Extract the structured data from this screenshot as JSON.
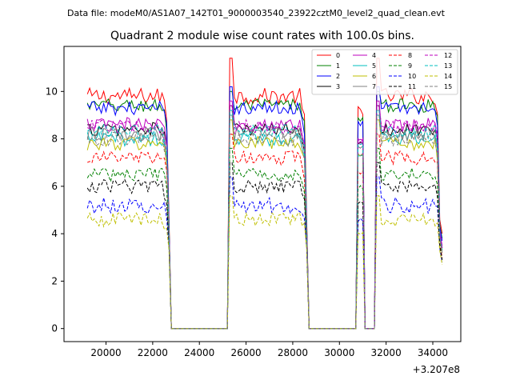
{
  "chart_data": {
    "type": "line",
    "suptitle": "Data file: modeM0/AS1A07_142T01_9000003540_23922cztM0_level2_quad_clean.evt",
    "title": "Quadrant 2 module wise count rates with 100.0s bins.",
    "xlabel": "",
    "ylabel": "",
    "x_offset_label": "+3.207e8",
    "xlim": [
      18200,
      35200
    ],
    "ylim": [
      -0.55,
      11.9
    ],
    "xticks": [
      20000,
      22000,
      24000,
      26000,
      28000,
      30000,
      32000,
      34000
    ],
    "xtick_labels": [
      "20000",
      "22000",
      "24000",
      "26000",
      "28000",
      "30000",
      "32000",
      "34000"
    ],
    "yticks": [
      0,
      2,
      4,
      6,
      8,
      10
    ],
    "ytick_labels": [
      "0",
      "2",
      "4",
      "6",
      "8",
      "10"
    ],
    "grid": false,
    "legend_position": "top-right",
    "segments": [
      {
        "start": 19200,
        "end": 22800,
        "on": true
      },
      {
        "start": 22800,
        "end": 25300,
        "on": false
      },
      {
        "start": 25300,
        "end": 28700,
        "on": true
      },
      {
        "start": 28700,
        "end": 30800,
        "on": false
      },
      {
        "start": 30800,
        "end": 31100,
        "on": true
      },
      {
        "start": 31100,
        "end": 31600,
        "on": false
      },
      {
        "start": 31600,
        "end": 34400,
        "on": true
      }
    ],
    "series": [
      {
        "name": "0",
        "color": "#ff0000",
        "style": "solid",
        "mean": 9.8,
        "noise": 0.35,
        "peak": 11.4,
        "end": 4.6
      },
      {
        "name": "1",
        "color": "#008000",
        "style": "solid",
        "mean": 9.4,
        "noise": 0.3,
        "peak": 10.0,
        "end": 4.4
      },
      {
        "name": "2",
        "color": "#0000ff",
        "style": "solid",
        "mean": 9.3,
        "noise": 0.3,
        "peak": 10.2,
        "end": 4.3
      },
      {
        "name": "3",
        "color": "#000000",
        "style": "solid",
        "mean": 8.4,
        "noise": 0.3,
        "peak": 9.4,
        "end": 4.0
      },
      {
        "name": "4",
        "color": "#bf00bf",
        "style": "solid",
        "mean": 8.6,
        "noise": 0.3,
        "peak": 9.6,
        "end": 4.1
      },
      {
        "name": "5",
        "color": "#00bfbf",
        "style": "solid",
        "mean": 8.0,
        "noise": 0.3,
        "peak": 9.0,
        "end": 3.9
      },
      {
        "name": "6",
        "color": "#bfbf00",
        "style": "solid",
        "mean": 7.8,
        "noise": 0.3,
        "peak": 8.8,
        "end": 3.8
      },
      {
        "name": "7",
        "color": "#808080",
        "style": "solid",
        "mean": 8.2,
        "noise": 0.3,
        "peak": 9.2,
        "end": 3.9
      },
      {
        "name": "8",
        "color": "#ff0000",
        "style": "dashed",
        "mean": 7.2,
        "noise": 0.3,
        "peak": 8.2,
        "end": 3.6
      },
      {
        "name": "9",
        "color": "#008000",
        "style": "dashed",
        "mean": 6.5,
        "noise": 0.3,
        "peak": 7.6,
        "end": 3.5
      },
      {
        "name": "10",
        "color": "#0000ff",
        "style": "dashed",
        "mean": 5.2,
        "noise": 0.35,
        "peak": 6.4,
        "end": 3.4
      },
      {
        "name": "11",
        "color": "#000000",
        "style": "dashed",
        "mean": 6.0,
        "noise": 0.3,
        "peak": 7.0,
        "end": 3.5
      },
      {
        "name": "12",
        "color": "#bf00bf",
        "style": "dashed",
        "mean": 8.5,
        "noise": 0.3,
        "peak": 9.4,
        "end": 4.0
      },
      {
        "name": "13",
        "color": "#00bfbf",
        "style": "dashed",
        "mean": 8.3,
        "noise": 0.3,
        "peak": 9.2,
        "end": 3.9
      },
      {
        "name": "14",
        "color": "#bfbf00",
        "style": "dashed",
        "mean": 4.6,
        "noise": 0.3,
        "peak": 5.6,
        "end": 3.3
      },
      {
        "name": "15",
        "color": "#808080",
        "style": "dashed",
        "mean": 8.0,
        "noise": 0.3,
        "peak": 9.0,
        "end": 3.8
      }
    ]
  }
}
